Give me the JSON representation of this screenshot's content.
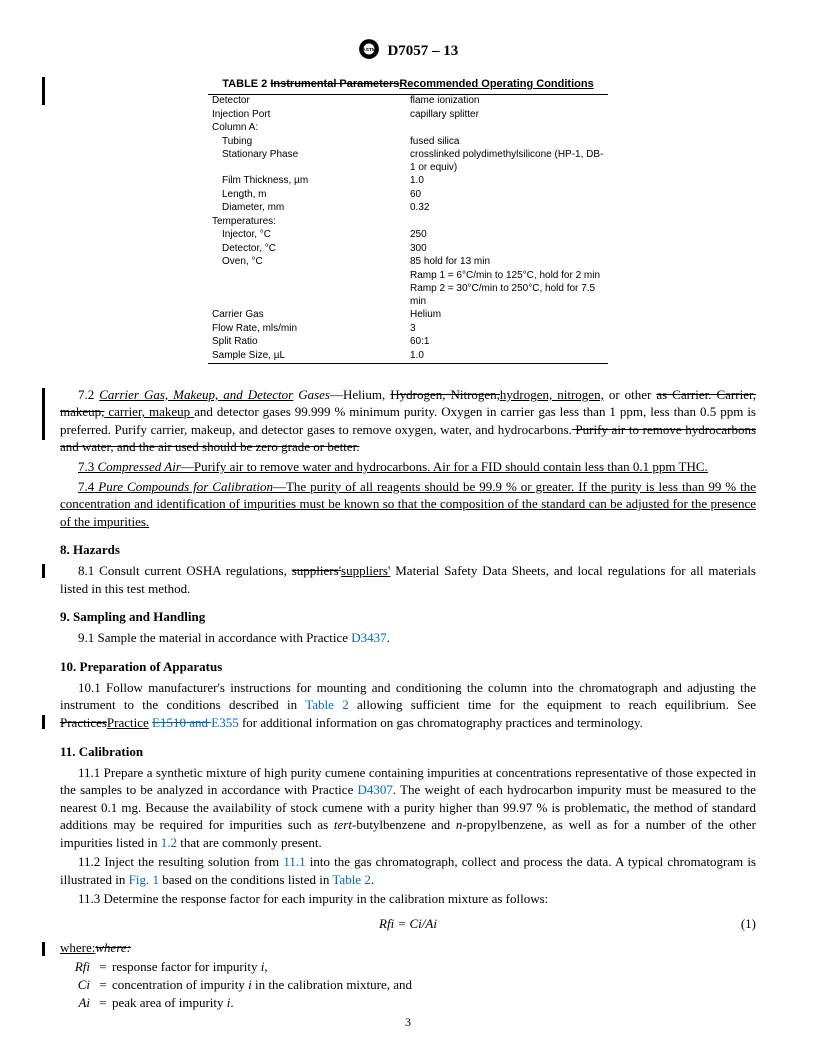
{
  "header": {
    "docnum": "D7057 – 13"
  },
  "tableTitle": {
    "prefix": "TABLE 2 ",
    "struck": "Instrumental Parameters",
    "added": "Recommended Operating Conditions"
  },
  "table": {
    "rows": [
      {
        "l": "Detector",
        "r": "flame ionization"
      },
      {
        "l": "Injection Port",
        "r": "capillary splitter"
      },
      {
        "l": "Column A:",
        "r": ""
      },
      {
        "l": "Tubing",
        "r": "fused silica",
        "indent": true
      },
      {
        "l": "Stationary Phase",
        "r": "crosslinked polydimethylsilicone (HP-1, DB-1 or equiv)",
        "indent": true
      },
      {
        "l": "Film Thickness, µm",
        "r": "1.0",
        "indent": true
      },
      {
        "l": "Length, m",
        "r": "60",
        "indent": true
      },
      {
        "l": "Diameter, mm",
        "r": "0.32",
        "indent": true
      },
      {
        "l": "Temperatures:",
        "r": ""
      },
      {
        "l": "Injector, °C",
        "r": "250",
        "indent": true
      },
      {
        "l": "Detector, °C",
        "r": "300",
        "indent": true
      },
      {
        "l": "Oven, °C",
        "r": "85 hold for 13 min",
        "indent": true
      },
      {
        "l": "",
        "r": "Ramp 1 = 6°C/min to 125°C, hold for 2 min"
      },
      {
        "l": "",
        "r": "Ramp 2 = 30°C/min to 250°C, hold for 7.5 min"
      },
      {
        "l": "Carrier Gas",
        "r": "Helium"
      },
      {
        "l": "Flow Rate, mls/min",
        "r": "3"
      },
      {
        "l": "Split Ratio",
        "r": "60:1"
      },
      {
        "l": "Sample Size, µL",
        "r": "1.0"
      }
    ]
  },
  "p72": {
    "lead": "7.2 ",
    "ital_u": "Carrier Gas, Makeup, and Detector",
    "ital_rest": " Gases",
    "dash": "—Helium, ",
    "struck1": "Hydrogen, Nitrogen,",
    "add1": "hydrogen, nitrogen,",
    "mid1": " or other ",
    "struck2": "as Carrier. Carrier, makeup,",
    "add2": " carrier, makeup ",
    "mid2": "and detector gases 99.999 % minimum purity. Oxygen in carrier gas less than 1 ppm, less than 0.5 ppm is preferred. Purify carrier, makeup, and detector gases to remove oxygen, water, and hydrocarbons.",
    "struck3": " Purify air to remove hydrocarbons and water, and the air used should be zero grade or better."
  },
  "p73": {
    "lead": "7.3 ",
    "ital": "Compressed Air",
    "body": "—Purify air to remove water and hydrocarbons. Air for a FID should contain less than 0.1 ppm THC."
  },
  "p74": {
    "lead": "7.4 ",
    "ital": "Pure Compounds for Calibration",
    "body": "—The purity of all reagents should be 99.9 % or greater. If the purity is less than 99 % the concentration and identification of impurities must be known so that the composition of the standard can be adjusted for the presence of the impurities."
  },
  "s8": {
    "head": "8. Hazards",
    "p1a": "8.1 Consult current OSHA regulations, ",
    "struck": "suppliers'",
    "add": "suppliers'",
    "p1b": " Material Safety Data Sheets, and local regulations for all materials listed in this test method."
  },
  "s9": {
    "head": "9. Sampling and Handling",
    "p1a": "9.1 Sample the material in accordance with Practice ",
    "link": "D3437",
    "p1b": "."
  },
  "s10": {
    "head": "10. Preparation of Apparatus",
    "p1a": "10.1 Follow manufacturer's instructions for mounting and conditioning the column into the chromatograph and adjusting the instrument to the conditions described in ",
    "link1": "Table 2",
    "p1b": " allowing sufficient time for the equipment to reach equilibrium. See ",
    "struck1": "Practices",
    "add1": "Practice",
    "sp": " ",
    "struck2": "E1510 and ",
    "link2": "E355",
    "p1c": " for additional information on gas chromatography practices and terminology."
  },
  "s11": {
    "head": "11. Calibration",
    "p1a": "11.1 Prepare a synthetic mixture of high purity cumene containing impurities at concentrations representative of those expected in the samples to be analyzed in accordance with Practice ",
    "link1": "D4307",
    "p1b": ". The weight of each hydrocarbon impurity must be measured to the nearest 0.1 mg. Because the availability of stock cumene with a purity higher than 99.97 % is problematic, the method of standard additions may be required for impurities such as ",
    "ital1": "tert",
    "p1c": "-butylbenzene and ",
    "ital2": "n",
    "p1d": "-propylbenzene, as well as for a number of the other impurities listed in ",
    "link2": "1.2",
    "p1e": " that are commonly present.",
    "p2a": "11.2 Inject the resulting solution from ",
    "link3": "11.1",
    "p2b": " into the gas chromatograph, collect and process the data. A typical chromatogram is illustrated in ",
    "link4": "Fig. 1",
    "p2c": " based on the conditions listed in ",
    "link5": "Table 2",
    "p2d": ".",
    "p3": "11.3 Determine the response factor for each impurity in the calibration mixture as follows:"
  },
  "eq": {
    "text": "Rfi = Ci/Ai",
    "num": "(1)"
  },
  "where": {
    "label_u": "where:",
    "label_s": "where:",
    "r1s": "Rfi",
    "r1d": "response factor for impurity ",
    "r1i": "i",
    "r1e": ",",
    "r2s": "Ci",
    "r2d": "concentration of impurity ",
    "r2i": "i",
    "r2e": " in the calibration mixture, and",
    "r3s": "Ai",
    "r3d": "peak area of impurity ",
    "r3i": "i",
    "r3e": "."
  },
  "pagenum": "3"
}
